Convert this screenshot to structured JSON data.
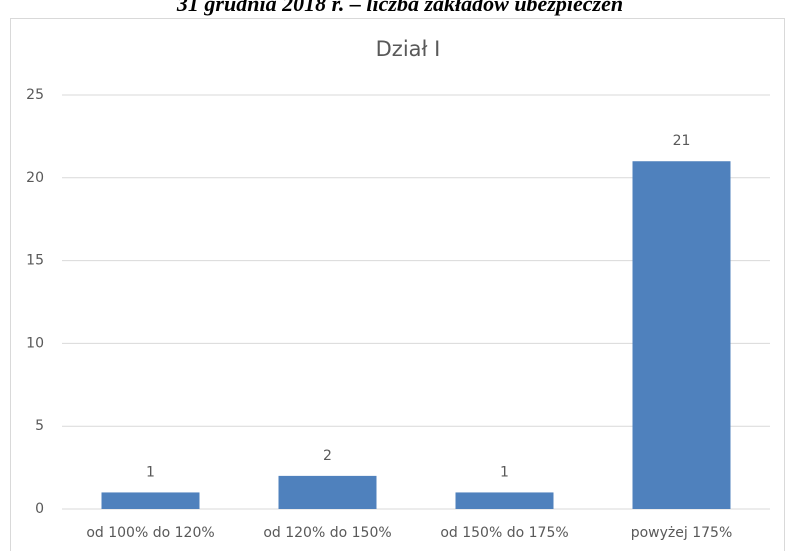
{
  "header": {
    "text": "31 grudnia 2018 r. – liczba zakładów ubezpieczeń"
  },
  "chart_data": {
    "type": "bar",
    "title": "Dział I",
    "categories": [
      "od 100% do 120%",
      "od 120% do 150%",
      "od 150% do 175%",
      "powyżej 175%"
    ],
    "values": [
      1,
      2,
      1,
      21
    ],
    "color": "#4f81bd",
    "ylim": [
      0,
      25
    ],
    "yticks": [
      0,
      5,
      10,
      15,
      20,
      25
    ],
    "grid": true,
    "data_labels": true
  }
}
